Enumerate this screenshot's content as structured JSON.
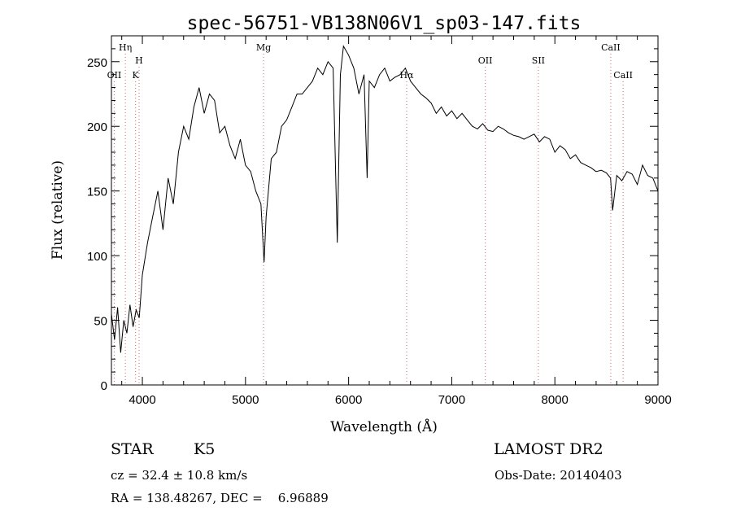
{
  "chart_data": {
    "type": "line",
    "title": "spec-56751-VB138N06V1_sp03-147.fits",
    "xlabel": "Wavelength (Å)",
    "ylabel": "Flux (relative)",
    "xlim": [
      3700,
      9000
    ],
    "ylim": [
      0,
      270
    ],
    "x_ticks": [
      4000,
      5000,
      6000,
      7000,
      8000,
      9000
    ],
    "y_ticks": [
      0,
      50,
      100,
      150,
      200,
      250
    ],
    "grid": false,
    "line_color": "#000000",
    "marker_color": "#cc6666",
    "series": [
      {
        "x": [
          3700,
          3730,
          3760,
          3790,
          3820,
          3850,
          3880,
          3910,
          3940,
          3970,
          4000,
          4050,
          4100,
          4150,
          4200,
          4250,
          4300,
          4350,
          4400,
          4450,
          4500,
          4550,
          4600,
          4650,
          4700,
          4750,
          4800,
          4850,
          4900,
          4950,
          5000,
          5050,
          5100,
          5150,
          5180,
          5200,
          5250,
          5300,
          5350,
          5400,
          5450,
          5500,
          5550,
          5600,
          5650,
          5700,
          5750,
          5800,
          5850,
          5890,
          5920,
          5950,
          6000,
          6050,
          6100,
          6150,
          6180,
          6200,
          6250,
          6300,
          6350,
          6400,
          6450,
          6500,
          6550,
          6600,
          6650,
          6700,
          6750,
          6800,
          6850,
          6900,
          6950,
          7000,
          7050,
          7100,
          7150,
          7200,
          7250,
          7300,
          7350,
          7400,
          7450,
          7500,
          7550,
          7600,
          7650,
          7700,
          7750,
          7800,
          7850,
          7900,
          7950,
          8000,
          8050,
          8100,
          8150,
          8200,
          8250,
          8300,
          8350,
          8400,
          8450,
          8500,
          8540,
          8560,
          8600,
          8650,
          8700,
          8750,
          8800,
          8850,
          8900,
          8950,
          9000
        ],
        "y": [
          55,
          35,
          60,
          25,
          50,
          40,
          62,
          45,
          58,
          52,
          85,
          110,
          130,
          150,
          120,
          160,
          140,
          180,
          200,
          190,
          215,
          230,
          210,
          225,
          220,
          195,
          200,
          185,
          175,
          190,
          170,
          165,
          150,
          140,
          95,
          130,
          175,
          180,
          200,
          205,
          215,
          225,
          225,
          230,
          235,
          245,
          240,
          250,
          245,
          110,
          240,
          262,
          255,
          245,
          225,
          240,
          160,
          235,
          230,
          240,
          245,
          235,
          238,
          240,
          245,
          235,
          230,
          225,
          222,
          218,
          210,
          215,
          208,
          212,
          206,
          210,
          205,
          200,
          198,
          202,
          197,
          196,
          200,
          198,
          195,
          193,
          192,
          190,
          192,
          194,
          188,
          192,
          190,
          180,
          185,
          182,
          175,
          178,
          172,
          170,
          168,
          165,
          166,
          164,
          160,
          135,
          162,
          158,
          165,
          163,
          155,
          170,
          162,
          160,
          150
        ]
      }
    ],
    "lines": [
      {
        "label": "Hη",
        "x": 3835,
        "row": 0
      },
      {
        "label": "OII",
        "x": 3727,
        "row": 2
      },
      {
        "label": "H",
        "x": 3968,
        "row": 1
      },
      {
        "label": "K",
        "x": 3934,
        "row": 2
      },
      {
        "label": "Mg",
        "x": 5175,
        "row": 0
      },
      {
        "label": "Hα",
        "x": 6563,
        "row": 2
      },
      {
        "label": "OII",
        "x": 7325,
        "row": 1
      },
      {
        "label": "SII",
        "x": 7840,
        "row": 1
      },
      {
        "label": "CaII",
        "x": 8542,
        "row": 0
      },
      {
        "label": "CaII",
        "x": 8662,
        "row": 2
      }
    ]
  },
  "info": {
    "object_type": "STAR",
    "subclass": "K5",
    "survey": "LAMOST DR2",
    "cz": "cz = 32.4 ± 10.8 km/s",
    "obs_date": "Obs-Date: 20140403",
    "coords": "RA = 138.48267, DEC =    6.96889"
  }
}
